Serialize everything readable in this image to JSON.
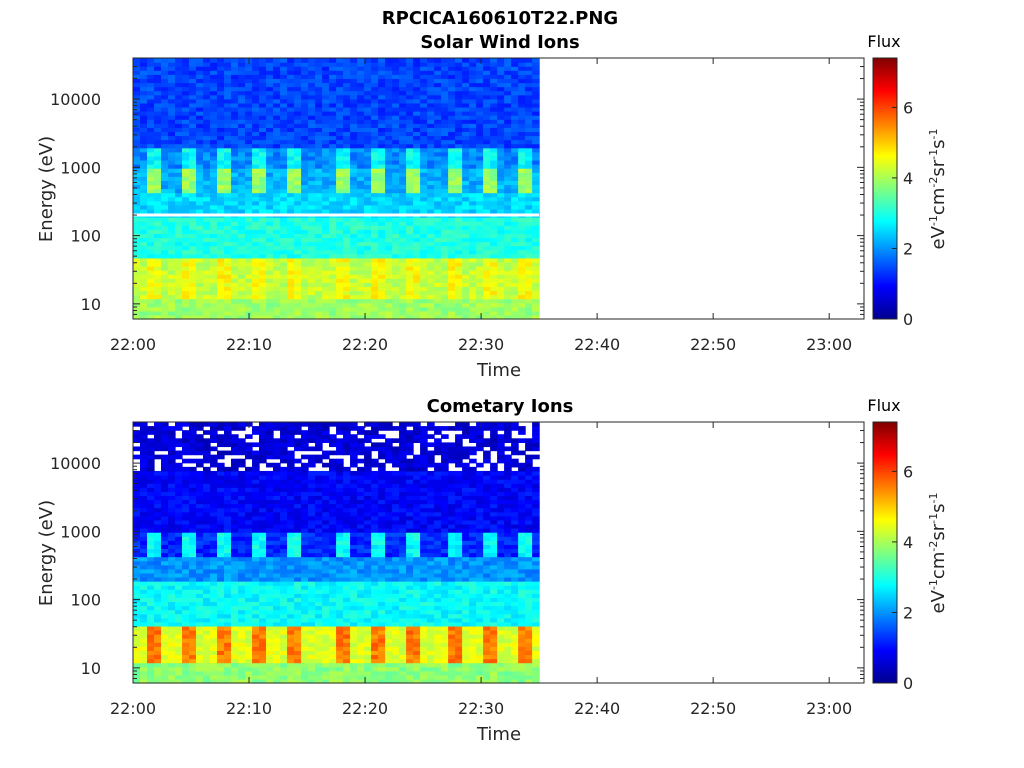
{
  "figure_title": "RPCICA160610T22.PNG",
  "chart_data": [
    {
      "type": "heatmap",
      "title": "Solar Wind Ions",
      "xlabel": "Time",
      "ylabel": "Energy (eV)",
      "x_ticks": [
        "22:00",
        "22:10",
        "22:20",
        "22:30",
        "22:40",
        "22:50",
        "23:00"
      ],
      "y_ticks": [
        "10",
        "100",
        "1000",
        "10000"
      ],
      "y_scale": "log",
      "ylim": [
        6,
        40000
      ],
      "xlim": [
        "22:00",
        "23:03"
      ],
      "data_extent": [
        "22:00",
        "22:35"
      ],
      "colorbar": {
        "label": "Flux",
        "units": "eV-1cm-2sr-1s-1",
        "ticks": [
          "0",
          "2",
          "4",
          "6"
        ],
        "range": [
          0,
          7.4
        ],
        "colormap": "jet"
      },
      "bands": [
        {
          "energy_range": [
            6,
            12
          ],
          "flux": 3.9
        },
        {
          "energy_range": [
            12,
            45
          ],
          "flux": 4.2,
          "pulsed": true,
          "pulse_flux": 4.6
        },
        {
          "energy_range": [
            45,
            200
          ],
          "flux": 3.0
        },
        {
          "energy_range": [
            200,
            400
          ],
          "flux": 2.5
        },
        {
          "energy_range": [
            400,
            1000
          ],
          "flux": 2.2,
          "pulsed": true,
          "pulse_flux": 3.9
        },
        {
          "energy_range": [
            1000,
            2000
          ],
          "flux": 1.9,
          "pulsed": true,
          "pulse_flux": 2.8
        },
        {
          "energy_range": [
            2000,
            40000
          ],
          "flux": 1.4
        }
      ],
      "pulse_times": [
        "22:02",
        "22:05",
        "22:08",
        "22:11",
        "22:14",
        "22:18",
        "22:21",
        "22:24",
        "22:28",
        "22:31",
        "22:34"
      ],
      "gap_line_energy": 200
    },
    {
      "type": "heatmap",
      "title": "Cometary Ions",
      "xlabel": "Time",
      "ylabel": "Energy (eV)",
      "x_ticks": [
        "22:00",
        "22:10",
        "22:20",
        "22:30",
        "22:40",
        "22:50",
        "23:00"
      ],
      "y_ticks": [
        "10",
        "100",
        "1000",
        "10000"
      ],
      "y_scale": "log",
      "ylim": [
        6,
        40000
      ],
      "xlim": [
        "22:00",
        "23:03"
      ],
      "data_extent": [
        "22:00",
        "22:35"
      ],
      "colorbar": {
        "label": "Flux",
        "units": "eV-1cm-2sr-1s-1",
        "ticks": [
          "0",
          "2",
          "4",
          "6"
        ],
        "range": [
          0,
          7.4
        ],
        "colormap": "jet"
      },
      "bands": [
        {
          "energy_range": [
            6,
            12
          ],
          "flux": 3.8
        },
        {
          "energy_range": [
            12,
            40
          ],
          "flux": 4.4,
          "pulsed": true,
          "pulse_flux": 5.6
        },
        {
          "energy_range": [
            40,
            200
          ],
          "flux": 2.8
        },
        {
          "energy_range": [
            200,
            400
          ],
          "flux": 2.0
        },
        {
          "energy_range": [
            400,
            1000
          ],
          "flux": 1.2,
          "pulsed": true,
          "pulse_flux": 2.8
        },
        {
          "energy_range": [
            1000,
            8000
          ],
          "flux": 0.9
        },
        {
          "energy_range": [
            8000,
            40000
          ],
          "flux": 0.6,
          "sparse": true
        }
      ],
      "pulse_times": [
        "22:02",
        "22:05",
        "22:08",
        "22:11",
        "22:14",
        "22:18",
        "22:21",
        "22:24",
        "22:28",
        "22:31",
        "22:34"
      ]
    }
  ]
}
